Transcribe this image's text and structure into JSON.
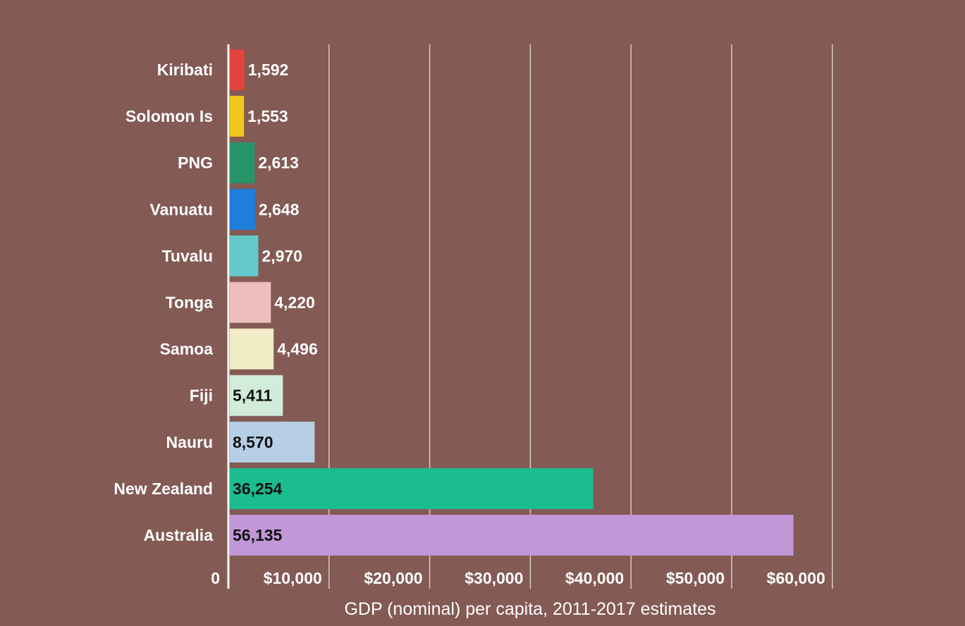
{
  "chart_data": {
    "type": "bar",
    "orientation": "horizontal",
    "title": "",
    "xlabel": "GDP (nominal) per capita, 2011-2017 estimates",
    "ylabel": "",
    "xlim": [
      0,
      60000
    ],
    "x_ticks": [
      0,
      10000,
      20000,
      30000,
      40000,
      50000,
      60000
    ],
    "x_tick_labels": [
      "0",
      "$10,000",
      "$20,000",
      "$30,000",
      "$40,000",
      "$50,000",
      "$60,000"
    ],
    "grid": "vertical",
    "legend": "none",
    "categories": [
      "Kiribati",
      "Solomon Is",
      "PNG",
      "Vanuatu",
      "Tuvalu",
      "Tonga",
      "Samoa",
      "Fiji",
      "Nauru",
      "New Zealand",
      "Australia"
    ],
    "values": [
      1592,
      1553,
      2613,
      2648,
      2970,
      4220,
      4496,
      5411,
      8570,
      36254,
      56135
    ],
    "value_labels": [
      "1,592",
      "1,553",
      "2,613",
      "2,648",
      "2,970",
      "4,220",
      "4,496",
      "5,411",
      "8,570",
      "36,254",
      "56,135"
    ],
    "bar_colors": [
      "#e0443c",
      "#f1c71c",
      "#27956a",
      "#1d7edd",
      "#63c9ca",
      "#eebdbd",
      "#f1ebc6",
      "#d1ecd9",
      "#b6cfe6",
      "#1bbc90",
      "#c297d7"
    ],
    "label_inside": [
      false,
      false,
      false,
      false,
      false,
      false,
      false,
      true,
      true,
      true,
      true
    ],
    "colors": {
      "background": "#835a54",
      "gridline": "#d8cbc9",
      "text": "#ffffff",
      "inside_label": "#111111"
    }
  }
}
